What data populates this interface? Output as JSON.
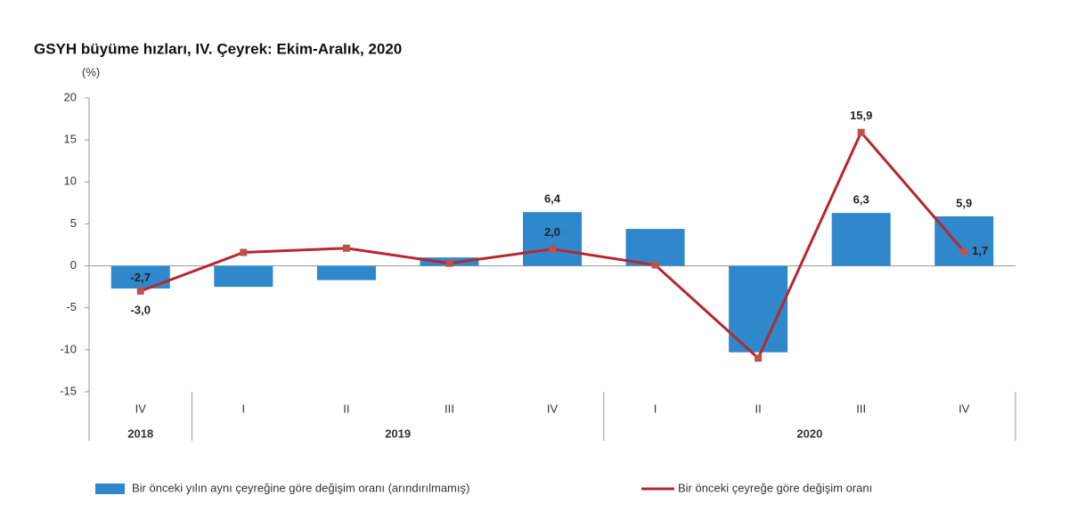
{
  "chart_data": {
    "type": "bar_line",
    "title": "GSYH büyüme hızları, IV. Çeyrek: Ekim-Aralık, 2020",
    "y_label": "(%)",
    "categories": [
      "IV",
      "I",
      "II",
      "III",
      "IV",
      "I",
      "II",
      "III",
      "IV"
    ],
    "year_groups": [
      {
        "label": "2018",
        "count": 1
      },
      {
        "label": "2019",
        "count": 4
      },
      {
        "label": "2020",
        "count": 4
      }
    ],
    "series": [
      {
        "name": "Bir önceki yılın aynı çeyreğine göre değişim oranı (arındırılmamış)",
        "type": "bar",
        "color": "#2f88cc",
        "values": [
          -2.7,
          -2.5,
          -1.7,
          1.0,
          6.4,
          4.4,
          -10.3,
          6.3,
          5.9
        ],
        "value_labels": [
          "-2,7",
          null,
          null,
          null,
          "6,4",
          null,
          null,
          "6,3",
          "5,9"
        ]
      },
      {
        "name": "Bir önceki çeyreğe göre değişim oranı",
        "type": "line",
        "color": "#b5282e",
        "marker_color": "#c0504d",
        "values": [
          -3.0,
          1.6,
          2.1,
          0.3,
          2.0,
          0.1,
          -11.0,
          15.9,
          1.7
        ],
        "value_labels": [
          "-3,0",
          null,
          null,
          null,
          "2,0",
          null,
          null,
          "15,9",
          "1,7"
        ]
      }
    ],
    "ylim": [
      -15,
      20
    ],
    "yticks": [
      -15,
      -10,
      -5,
      0,
      5,
      10,
      15,
      20
    ]
  }
}
